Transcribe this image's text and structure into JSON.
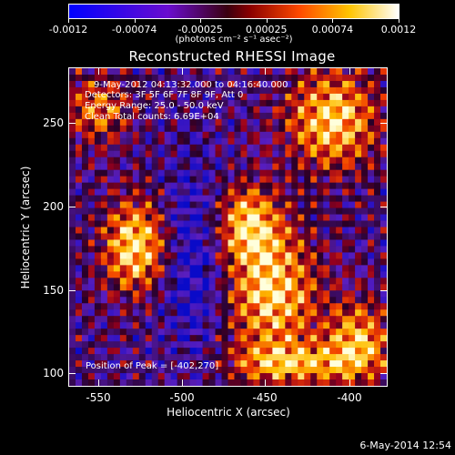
{
  "colorbar": {
    "labels": [
      "-0.0012",
      "-0.00074",
      "-0.00025",
      "0.00025",
      "0.00074",
      "0.0012"
    ],
    "units": "(photons cm⁻² s⁻¹ asec⁻²)",
    "colors": [
      "#0000ff",
      "#6a0dcf",
      "#8b0000",
      "#ff6a00",
      "#ffd200",
      "#ffffff"
    ]
  },
  "image": {
    "title": "Reconstructed RHESSI Image",
    "annotations": {
      "time_range": "9-May-2012 04:13:32.000 to 04:16:40.000",
      "detectors": "Detectors: 3F 5F 6F 7F 8F 9F, Att 0",
      "energy": "Energy Range: 25.0 - 50.0 keV",
      "clean": "Clean     Total counts: 6.69E+04",
      "peak": "Position of Peak = [-402,270]"
    },
    "xlabel": "Heliocentric X (arcsec)",
    "ylabel": "Heliocentric Y (arcsec)",
    "xticks": [
      "-550",
      "-500",
      "-450",
      "-400"
    ],
    "yticks": [
      "250",
      "200",
      "150",
      "100"
    ],
    "xrange": [
      -572,
      -373
    ],
    "yrange": [
      94,
      294
    ]
  },
  "footer": {
    "date": "6-May-2014 12:54"
  }
}
